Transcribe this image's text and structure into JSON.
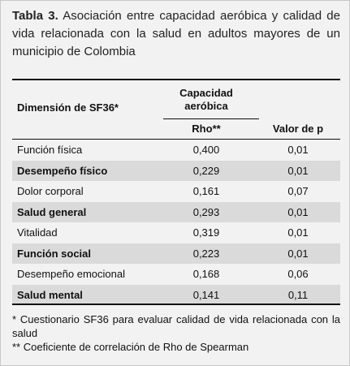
{
  "table": {
    "label": "Tabla 3.",
    "caption": "Asociación entre capacidad aeróbica y calidad de vida relacionada con la salud en adultos mayores de un municipio de Colombia",
    "header": {
      "dimension": "Dimensión de SF36*",
      "group": "Capacidad aeróbica",
      "rho": "Rho**",
      "p": "Valor de p"
    },
    "rows": [
      [
        "Función física",
        "0,400",
        "0,01"
      ],
      [
        "Desempeño físico",
        "0,229",
        "0,01"
      ],
      [
        "Dolor corporal",
        "0,161",
        "0,07"
      ],
      [
        "Salud general",
        "0,293",
        "0,01"
      ],
      [
        "Vitalidad",
        "0,319",
        "0,01"
      ],
      [
        "Función social",
        "0,223",
        "0,01"
      ],
      [
        "Desempeño emocional",
        "0,168",
        "0,06"
      ],
      [
        "Salud mental",
        "0,141",
        "0,11"
      ]
    ],
    "footnotes": [
      "* Cuestionario SF36 para evaluar calidad de vida relacionada con la salud",
      "** Coeficiente de correlación de Rho de Spearman"
    ]
  }
}
